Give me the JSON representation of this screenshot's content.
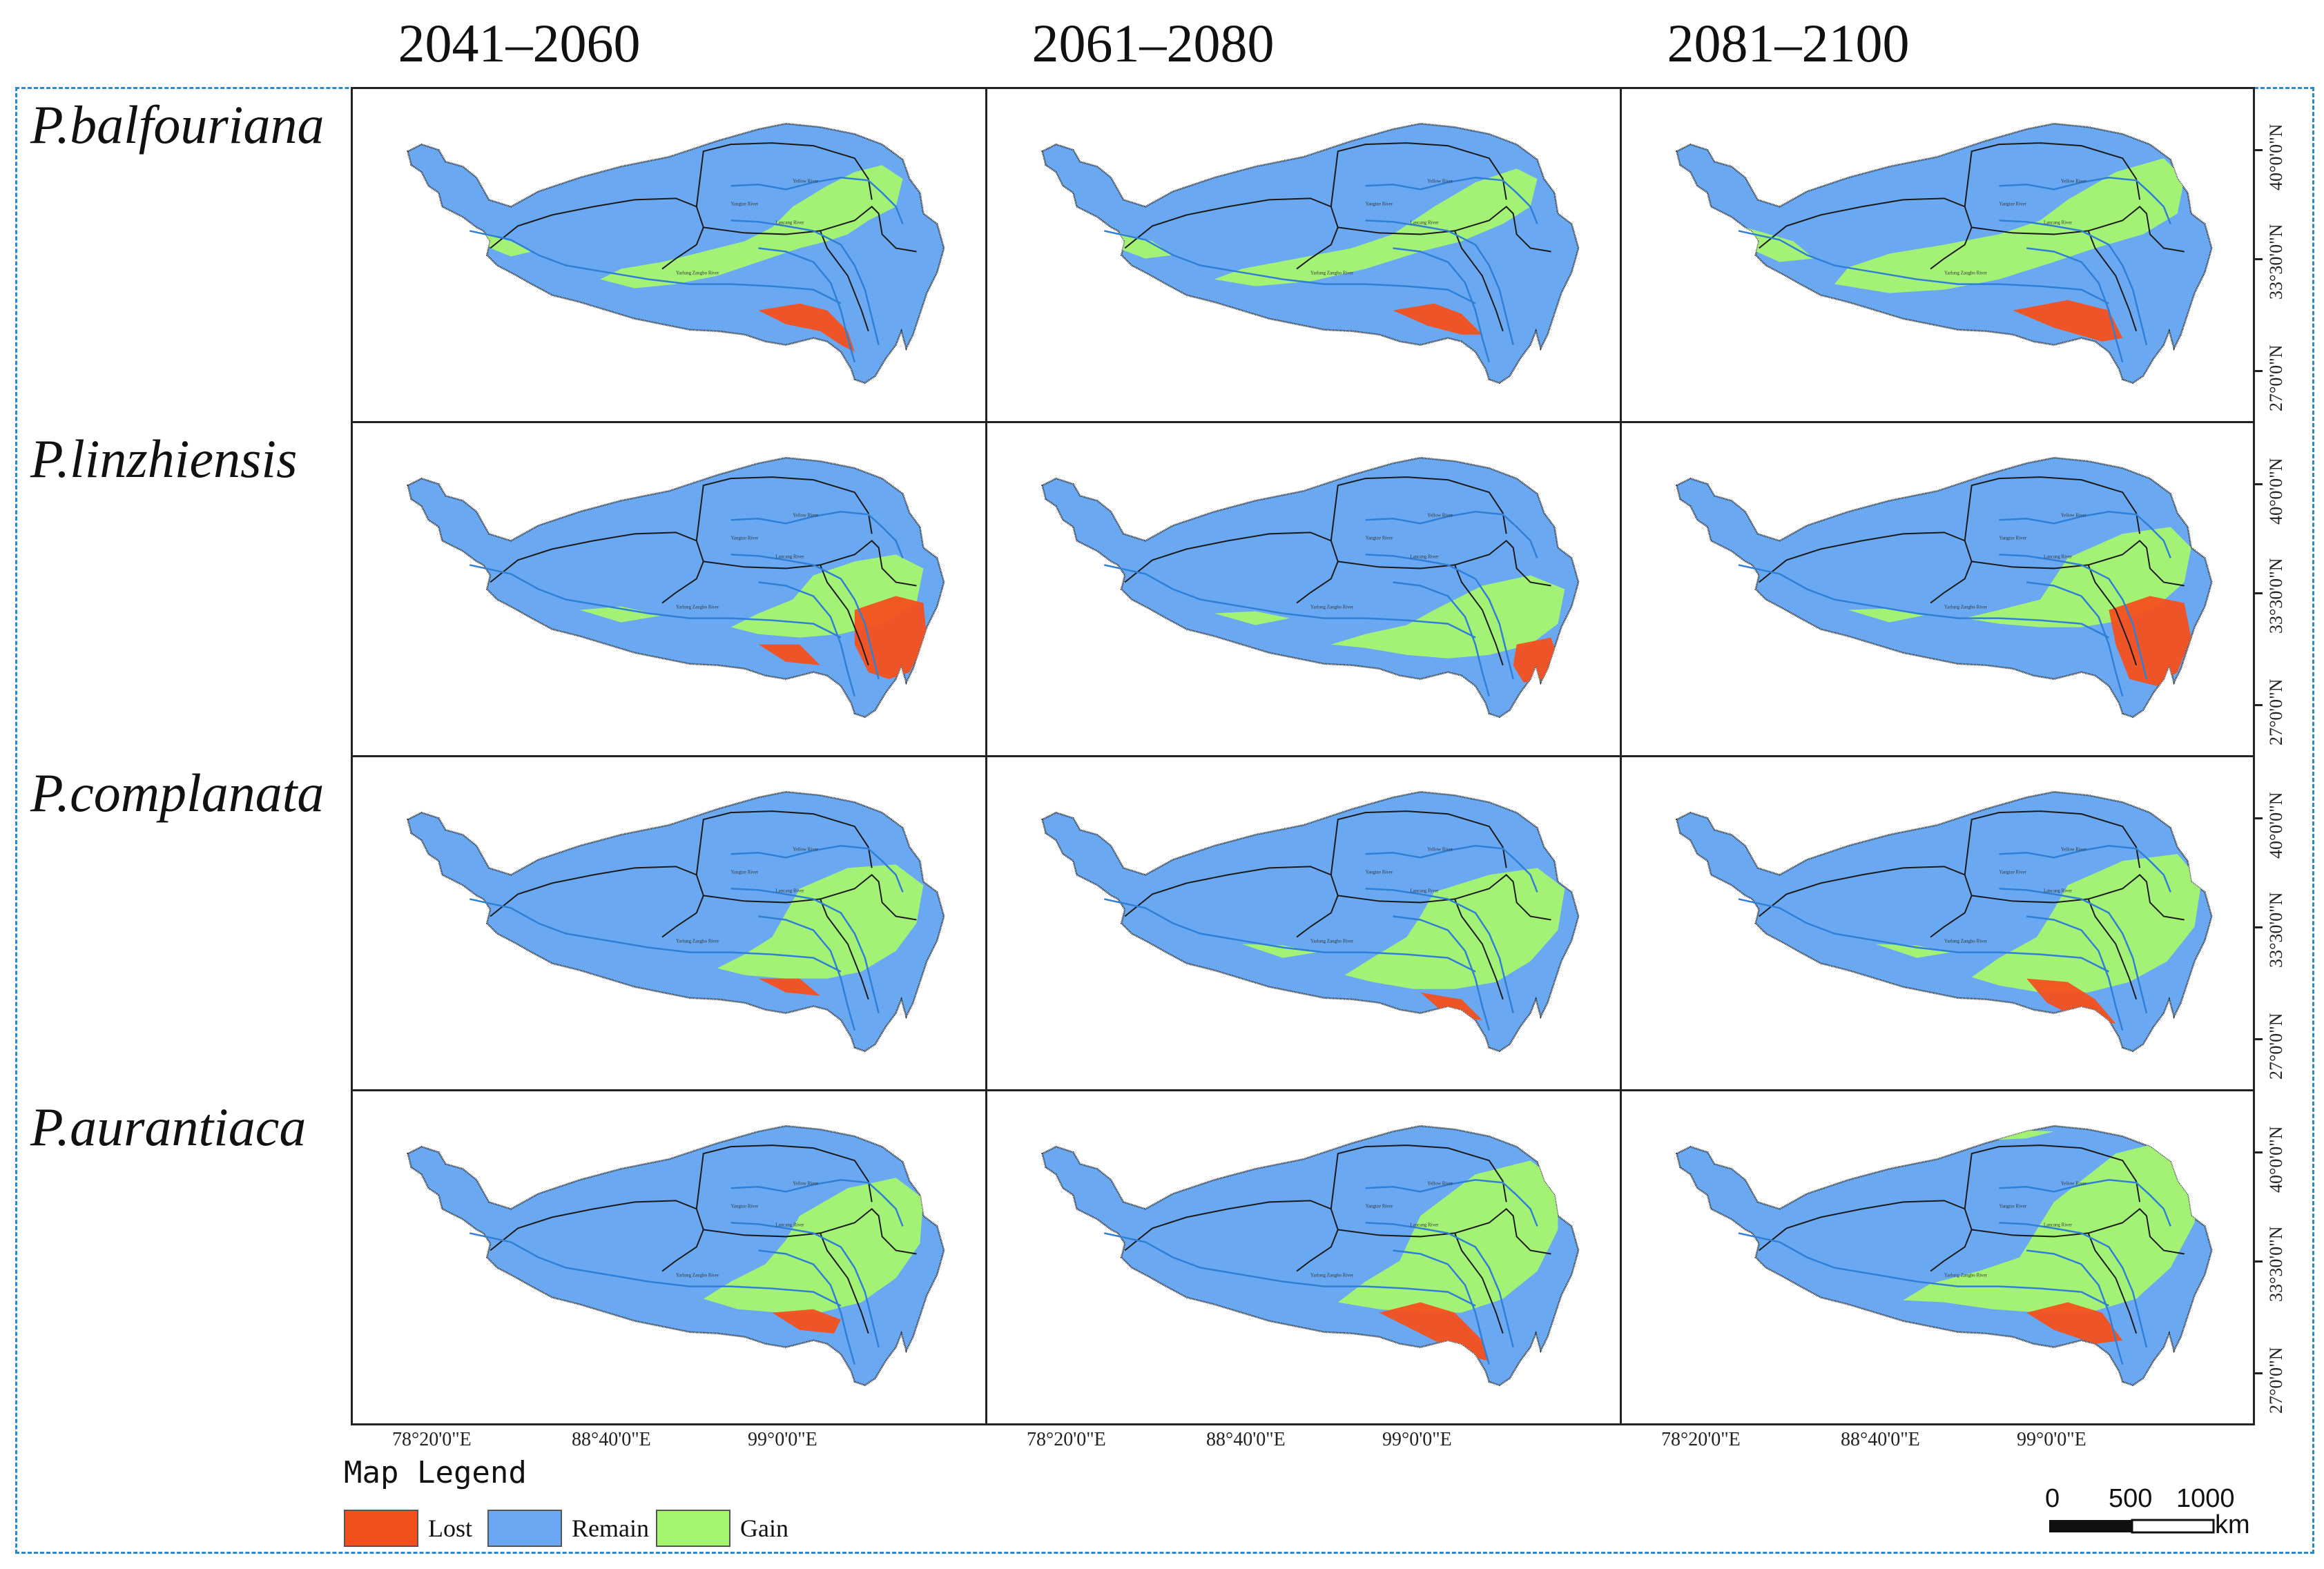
{
  "columns": [
    "2041–2060",
    "2061–2080",
    "2081–2100"
  ],
  "rows": [
    "P.balfouriana",
    "P.linzhiensis",
    "P.complanata",
    "P.aurantiaca"
  ],
  "river_labels": {
    "yellow": "Yellow River",
    "yangtze": "Yangtze River",
    "lancang": "Lancang River",
    "yarlung": "Yarlung Zangbo River"
  },
  "latitude_labels": [
    "40°0'0\"N",
    "33°30'0\"N",
    "27°0'0\"N"
  ],
  "longitude_labels": [
    "78°20'0\"E",
    "88°40'0\"E",
    "99°0'0\"E"
  ],
  "legend": {
    "title": "Map Legend",
    "items": [
      {
        "label": "Lost",
        "color": "#f4501e"
      },
      {
        "label": "Remain",
        "color": "#6aa9f2"
      },
      {
        "label": "Gain",
        "color": "#a6f56e"
      }
    ]
  },
  "scale_bar": {
    "ticks": [
      "0",
      "500",
      "1000"
    ],
    "unit": "km"
  },
  "colors": {
    "remain": "#6aa9f2",
    "gain": "#a6f56e",
    "lost": "#f4501e",
    "river": "#2f7fd6",
    "boundary": "#1a1a1a",
    "frame": "#2a8ad0"
  }
}
